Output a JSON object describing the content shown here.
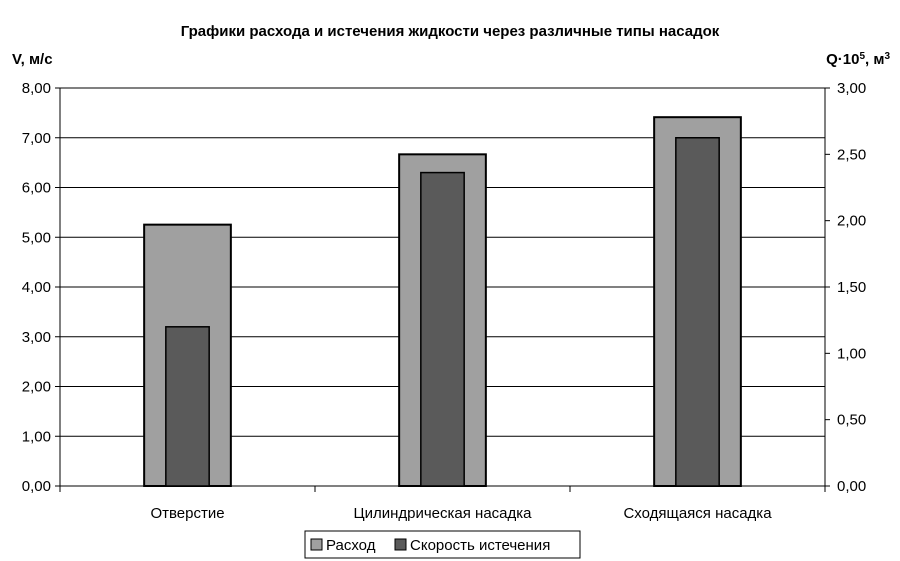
{
  "chart_data": {
    "type": "bar",
    "title": "Графики расхода и истечения жидкости через различные типы насадок",
    "categories": [
      "Отверстие",
      "Цилиндрическая насадка",
      "Сходящаяся насадка"
    ],
    "y_left": {
      "label": "V, м/с",
      "ylim": [
        0,
        8
      ],
      "ticks": [
        "0,00",
        "1,00",
        "2,00",
        "3,00",
        "4,00",
        "5,00",
        "6,00",
        "7,00",
        "8,00"
      ]
    },
    "y_right": {
      "label_base": "Q",
      "label_mid": "·10",
      "label_exp": "5",
      "label_unit": ", м",
      "label_unit_exp": "3",
      "ylim": [
        0,
        3
      ],
      "ticks": [
        "0,00",
        "0,50",
        "1,00",
        "1,50",
        "2,00",
        "2,50",
        "3,00"
      ]
    },
    "series": [
      {
        "name": "Расход",
        "axis": "right",
        "color": "#a0a0a0",
        "values": [
          1.97,
          2.5,
          2.78
        ]
      },
      {
        "name": "Скорость истечения",
        "axis": "left",
        "color": "#5a5a5a",
        "values": [
          3.2,
          6.3,
          7.0
        ]
      }
    ],
    "grid": true,
    "legend_position": "bottom"
  }
}
